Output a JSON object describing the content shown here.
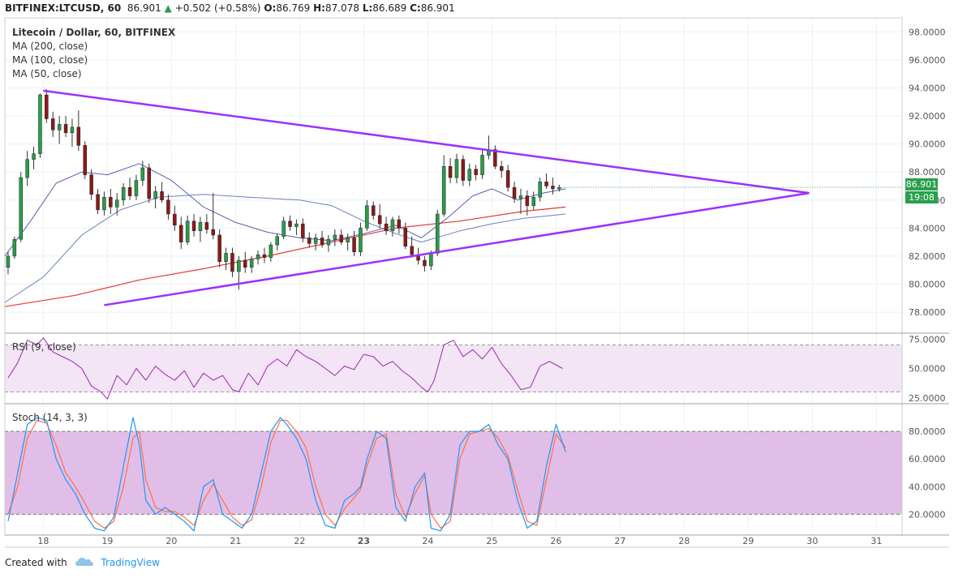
{
  "header": {
    "symbol": "BITFINEX:LTCUSD, 60",
    "last": "86.901",
    "change": "+0.502 (+0.58%)",
    "o_label": "O:",
    "o": "86.769",
    "h_label": "H:",
    "h": "87.078",
    "l_label": "L:",
    "l": "86.689",
    "c_label": "C:",
    "c": "86.901"
  },
  "legend": {
    "title": "Litecoin / Dollar, 60, BITFINEX",
    "ma200": "MA (200, close)",
    "ma100": "MA (100, close)",
    "ma50": "MA (50, close)"
  },
  "badges": {
    "price": "86.901",
    "time": "19:08"
  },
  "rsi_label": "RSI (9, close)",
  "stoch_label": "Stoch (14, 3, 3)",
  "footer": {
    "created_with": "Created with",
    "brand": "TradingView"
  },
  "colors": {
    "up": "#2a9d4a",
    "down": "#8b1a1a",
    "triangle": "#9b30ff",
    "ma200": "#e53935",
    "ma100": "#6b7fc6",
    "ma50": "#5560b0",
    "rsi_line": "#9c27b0",
    "stoch_k": "#2196f3",
    "stoch_d": "#ff7043",
    "band": "#e1bee7"
  },
  "chart_data": [
    {
      "type": "candlestick",
      "title": "Litecoin / Dollar, 60, BITFINEX",
      "x_ticks": [
        "18",
        "19",
        "20",
        "21",
        "22",
        "23",
        "24",
        "25",
        "26",
        "27",
        "28",
        "29",
        "30",
        "31"
      ],
      "y_ticks": [
        "98.0000",
        "96.0000",
        "94.0000",
        "92.0000",
        "90.0000",
        "88.0000",
        "86.0000",
        "84.0000",
        "82.0000",
        "80.0000",
        "78.0000"
      ],
      "ylim": [
        76.5,
        99
      ],
      "xlim": [
        17.4,
        31.4
      ],
      "candles": [
        {
          "t": 17.45,
          "o": 81.2,
          "h": 82.3,
          "l": 80.7,
          "c": 82.0
        },
        {
          "t": 17.55,
          "o": 82.0,
          "h": 83.4,
          "l": 81.8,
          "c": 83.2
        },
        {
          "t": 17.65,
          "o": 83.2,
          "h": 88.0,
          "l": 83.0,
          "c": 87.6
        },
        {
          "t": 17.75,
          "o": 87.6,
          "h": 89.5,
          "l": 87.0,
          "c": 88.9
        },
        {
          "t": 17.85,
          "o": 88.9,
          "h": 89.8,
          "l": 88.2,
          "c": 89.3
        },
        {
          "t": 17.95,
          "o": 89.3,
          "h": 93.6,
          "l": 89.0,
          "c": 93.5
        },
        {
          "t": 18.05,
          "o": 93.5,
          "h": 93.9,
          "l": 91.5,
          "c": 91.8
        },
        {
          "t": 18.15,
          "o": 91.8,
          "h": 92.3,
          "l": 90.5,
          "c": 91.0
        },
        {
          "t": 18.25,
          "o": 91.0,
          "h": 92.0,
          "l": 90.0,
          "c": 91.4
        },
        {
          "t": 18.35,
          "o": 91.4,
          "h": 92.0,
          "l": 90.5,
          "c": 90.8
        },
        {
          "t": 18.45,
          "o": 90.8,
          "h": 91.8,
          "l": 89.8,
          "c": 91.2
        },
        {
          "t": 18.55,
          "o": 91.2,
          "h": 92.4,
          "l": 89.5,
          "c": 89.9
        },
        {
          "t": 18.65,
          "o": 89.9,
          "h": 90.2,
          "l": 87.5,
          "c": 87.8
        },
        {
          "t": 18.75,
          "o": 87.8,
          "h": 88.2,
          "l": 86.0,
          "c": 86.4
        },
        {
          "t": 18.85,
          "o": 86.4,
          "h": 86.8,
          "l": 85.0,
          "c": 85.3
        },
        {
          "t": 18.95,
          "o": 85.3,
          "h": 86.6,
          "l": 84.9,
          "c": 86.2
        },
        {
          "t": 19.05,
          "o": 86.2,
          "h": 86.8,
          "l": 85.0,
          "c": 85.5
        },
        {
          "t": 19.15,
          "o": 85.5,
          "h": 86.5,
          "l": 84.9,
          "c": 86.0
        },
        {
          "t": 19.25,
          "o": 86.0,
          "h": 87.2,
          "l": 85.6,
          "c": 86.9
        },
        {
          "t": 19.35,
          "o": 86.9,
          "h": 87.6,
          "l": 86.0,
          "c": 86.3
        },
        {
          "t": 19.45,
          "o": 86.3,
          "h": 87.8,
          "l": 86.0,
          "c": 87.4
        },
        {
          "t": 19.55,
          "o": 87.4,
          "h": 88.8,
          "l": 87.0,
          "c": 88.3
        },
        {
          "t": 19.65,
          "o": 88.3,
          "h": 88.6,
          "l": 85.8,
          "c": 86.1
        },
        {
          "t": 19.75,
          "o": 86.1,
          "h": 87.0,
          "l": 85.4,
          "c": 86.6
        },
        {
          "t": 19.85,
          "o": 86.6,
          "h": 87.3,
          "l": 85.8,
          "c": 86.0
        },
        {
          "t": 19.95,
          "o": 86.0,
          "h": 86.4,
          "l": 84.6,
          "c": 85.0
        },
        {
          "t": 20.05,
          "o": 85.0,
          "h": 85.6,
          "l": 83.8,
          "c": 84.2
        },
        {
          "t": 20.15,
          "o": 84.2,
          "h": 84.8,
          "l": 82.5,
          "c": 83.0
        },
        {
          "t": 20.25,
          "o": 83.0,
          "h": 84.9,
          "l": 82.8,
          "c": 84.5
        },
        {
          "t": 20.35,
          "o": 84.5,
          "h": 85.0,
          "l": 83.4,
          "c": 83.8
        },
        {
          "t": 20.45,
          "o": 83.8,
          "h": 84.8,
          "l": 83.0,
          "c": 84.4
        },
        {
          "t": 20.55,
          "o": 84.4,
          "h": 85.0,
          "l": 83.6,
          "c": 83.9
        },
        {
          "t": 20.65,
          "o": 83.9,
          "h": 86.5,
          "l": 83.2,
          "c": 83.5
        },
        {
          "t": 20.75,
          "o": 83.5,
          "h": 83.9,
          "l": 81.2,
          "c": 81.6
        },
        {
          "t": 20.85,
          "o": 81.6,
          "h": 82.6,
          "l": 81.0,
          "c": 82.2
        },
        {
          "t": 20.95,
          "o": 82.2,
          "h": 82.6,
          "l": 80.5,
          "c": 80.9
        },
        {
          "t": 21.05,
          "o": 80.9,
          "h": 82.0,
          "l": 79.6,
          "c": 81.7
        },
        {
          "t": 21.15,
          "o": 81.7,
          "h": 82.3,
          "l": 80.8,
          "c": 81.2
        },
        {
          "t": 21.25,
          "o": 81.2,
          "h": 82.0,
          "l": 80.8,
          "c": 81.8
        },
        {
          "t": 21.35,
          "o": 81.8,
          "h": 82.4,
          "l": 81.4,
          "c": 82.1
        },
        {
          "t": 21.45,
          "o": 82.1,
          "h": 82.6,
          "l": 81.5,
          "c": 81.9
        },
        {
          "t": 21.55,
          "o": 81.9,
          "h": 83.0,
          "l": 81.6,
          "c": 82.8
        },
        {
          "t": 21.65,
          "o": 82.8,
          "h": 83.6,
          "l": 82.4,
          "c": 83.4
        },
        {
          "t": 21.75,
          "o": 83.4,
          "h": 84.8,
          "l": 83.2,
          "c": 84.5
        },
        {
          "t": 21.85,
          "o": 84.5,
          "h": 84.9,
          "l": 83.8,
          "c": 84.1
        },
        {
          "t": 21.95,
          "o": 84.1,
          "h": 84.6,
          "l": 83.5,
          "c": 84.3
        },
        {
          "t": 22.05,
          "o": 84.3,
          "h": 84.7,
          "l": 83.0,
          "c": 83.3
        },
        {
          "t": 22.15,
          "o": 83.3,
          "h": 83.7,
          "l": 82.6,
          "c": 82.9
        },
        {
          "t": 22.25,
          "o": 82.9,
          "h": 83.6,
          "l": 82.4,
          "c": 83.3
        },
        {
          "t": 22.35,
          "o": 83.3,
          "h": 83.8,
          "l": 82.6,
          "c": 82.8
        },
        {
          "t": 22.45,
          "o": 82.8,
          "h": 83.5,
          "l": 82.3,
          "c": 83.2
        },
        {
          "t": 22.55,
          "o": 83.2,
          "h": 83.9,
          "l": 82.7,
          "c": 83.5
        },
        {
          "t": 22.65,
          "o": 83.5,
          "h": 83.9,
          "l": 82.8,
          "c": 83.0
        },
        {
          "t": 22.75,
          "o": 83.0,
          "h": 83.6,
          "l": 82.4,
          "c": 83.3
        },
        {
          "t": 22.85,
          "o": 83.3,
          "h": 83.8,
          "l": 82.0,
          "c": 82.3
        },
        {
          "t": 22.95,
          "o": 82.3,
          "h": 84.4,
          "l": 82.0,
          "c": 84.0
        },
        {
          "t": 23.05,
          "o": 84.0,
          "h": 86.0,
          "l": 83.8,
          "c": 85.6
        },
        {
          "t": 23.15,
          "o": 85.6,
          "h": 85.9,
          "l": 84.6,
          "c": 84.9
        },
        {
          "t": 23.25,
          "o": 84.9,
          "h": 85.7,
          "l": 84.0,
          "c": 84.3
        },
        {
          "t": 23.35,
          "o": 84.3,
          "h": 84.8,
          "l": 83.5,
          "c": 83.8
        },
        {
          "t": 23.45,
          "o": 83.8,
          "h": 84.8,
          "l": 83.4,
          "c": 84.6
        },
        {
          "t": 23.55,
          "o": 84.6,
          "h": 84.9,
          "l": 83.6,
          "c": 84.0
        },
        {
          "t": 23.65,
          "o": 84.0,
          "h": 84.4,
          "l": 82.5,
          "c": 82.7
        },
        {
          "t": 23.75,
          "o": 82.7,
          "h": 83.4,
          "l": 81.9,
          "c": 82.1
        },
        {
          "t": 23.85,
          "o": 82.1,
          "h": 82.6,
          "l": 81.4,
          "c": 81.7
        },
        {
          "t": 23.95,
          "o": 81.7,
          "h": 82.0,
          "l": 80.9,
          "c": 81.3
        },
        {
          "t": 24.05,
          "o": 81.3,
          "h": 82.4,
          "l": 81.0,
          "c": 82.2
        },
        {
          "t": 24.15,
          "o": 82.2,
          "h": 85.3,
          "l": 82.0,
          "c": 85.0
        },
        {
          "t": 24.25,
          "o": 85.0,
          "h": 89.2,
          "l": 84.8,
          "c": 88.4
        },
        {
          "t": 24.35,
          "o": 88.4,
          "h": 89.0,
          "l": 87.2,
          "c": 87.6
        },
        {
          "t": 24.45,
          "o": 87.6,
          "h": 89.3,
          "l": 87.2,
          "c": 88.9
        },
        {
          "t": 24.55,
          "o": 88.9,
          "h": 89.2,
          "l": 87.0,
          "c": 87.4
        },
        {
          "t": 24.65,
          "o": 87.4,
          "h": 88.6,
          "l": 87.0,
          "c": 88.2
        },
        {
          "t": 24.75,
          "o": 88.2,
          "h": 88.5,
          "l": 87.4,
          "c": 87.8
        },
        {
          "t": 24.85,
          "o": 87.8,
          "h": 89.6,
          "l": 87.5,
          "c": 89.2
        },
        {
          "t": 24.95,
          "o": 89.2,
          "h": 90.6,
          "l": 88.9,
          "c": 89.6
        },
        {
          "t": 25.05,
          "o": 89.6,
          "h": 89.9,
          "l": 88.2,
          "c": 88.4
        },
        {
          "t": 25.15,
          "o": 88.4,
          "h": 88.8,
          "l": 87.6,
          "c": 88.1
        },
        {
          "t": 25.25,
          "o": 88.1,
          "h": 88.5,
          "l": 86.6,
          "c": 86.9
        },
        {
          "t": 25.35,
          "o": 86.9,
          "h": 87.3,
          "l": 85.8,
          "c": 86.1
        },
        {
          "t": 25.45,
          "o": 86.1,
          "h": 86.8,
          "l": 85.0,
          "c": 86.3
        },
        {
          "t": 25.55,
          "o": 86.3,
          "h": 86.7,
          "l": 84.9,
          "c": 85.6
        },
        {
          "t": 25.65,
          "o": 85.6,
          "h": 86.6,
          "l": 85.3,
          "c": 86.2
        },
        {
          "t": 25.75,
          "o": 86.2,
          "h": 87.6,
          "l": 85.9,
          "c": 87.3
        },
        {
          "t": 25.85,
          "o": 87.3,
          "h": 87.9,
          "l": 86.8,
          "c": 87.0
        },
        {
          "t": 25.95,
          "o": 87.0,
          "h": 87.6,
          "l": 86.4,
          "c": 86.8
        },
        {
          "t": 26.05,
          "o": 86.8,
          "h": 87.1,
          "l": 86.6,
          "c": 86.9
        }
      ],
      "ma200": [
        [
          17.4,
          78.4
        ],
        [
          18.5,
          79.2
        ],
        [
          19.5,
          80.3
        ],
        [
          20.5,
          81.1
        ],
        [
          21.5,
          82.0
        ],
        [
          22.5,
          83.0
        ],
        [
          23.5,
          84.0
        ],
        [
          24.5,
          84.5
        ],
        [
          25.5,
          85.2
        ],
        [
          26.15,
          85.5
        ]
      ],
      "ma100": [
        [
          17.4,
          78.7
        ],
        [
          18.0,
          80.5
        ],
        [
          18.6,
          83.5
        ],
        [
          19.2,
          85.3
        ],
        [
          19.8,
          86.2
        ],
        [
          20.5,
          86.4
        ],
        [
          21.2,
          86.2
        ],
        [
          22.0,
          86.0
        ],
        [
          22.5,
          85.6
        ],
        [
          23.0,
          84.5
        ],
        [
          23.5,
          83.6
        ],
        [
          23.9,
          83.0
        ],
        [
          24.5,
          83.8
        ],
        [
          25.0,
          84.3
        ],
        [
          25.5,
          84.7
        ],
        [
          26.15,
          85.0
        ]
      ],
      "ma50": [
        [
          17.4,
          82.0
        ],
        [
          17.8,
          84.5
        ],
        [
          18.2,
          87.2
        ],
        [
          18.6,
          88.0
        ],
        [
          19.0,
          87.8
        ],
        [
          19.5,
          88.6
        ],
        [
          20.0,
          87.4
        ],
        [
          20.5,
          85.5
        ],
        [
          21.0,
          84.4
        ],
        [
          21.5,
          83.7
        ],
        [
          22.0,
          83.3
        ],
        [
          22.5,
          83.1
        ],
        [
          23.0,
          83.6
        ],
        [
          23.5,
          84.2
        ],
        [
          23.9,
          83.3
        ],
        [
          24.3,
          84.7
        ],
        [
          24.7,
          86.3
        ],
        [
          25.0,
          86.8
        ],
        [
          25.4,
          86.0
        ],
        [
          25.8,
          86.5
        ],
        [
          26.15,
          86.8
        ]
      ],
      "trendlines": [
        {
          "from": [
            18.0,
            93.8
          ],
          "to": [
            29.95,
            86.5
          ]
        },
        {
          "from": [
            18.95,
            78.5
          ],
          "to": [
            29.95,
            86.5
          ]
        }
      ]
    },
    {
      "type": "line",
      "title": "RSI (9, close)",
      "y_ticks": [
        "75.0000",
        "50.0000",
        "25.0000"
      ],
      "ylim": [
        20,
        80
      ],
      "band": [
        30,
        70
      ],
      "x": [
        17.45,
        17.6,
        17.75,
        17.9,
        18.0,
        18.15,
        18.3,
        18.45,
        18.6,
        18.75,
        18.9,
        19.0,
        19.15,
        19.3,
        19.45,
        19.6,
        19.75,
        19.9,
        20.05,
        20.2,
        20.35,
        20.5,
        20.65,
        20.8,
        20.95,
        21.05,
        21.2,
        21.35,
        21.5,
        21.65,
        21.8,
        21.95,
        22.1,
        22.25,
        22.4,
        22.55,
        22.7,
        22.85,
        23.0,
        23.15,
        23.3,
        23.45,
        23.6,
        23.75,
        23.9,
        24.0,
        24.1,
        24.25,
        24.4,
        24.55,
        24.7,
        24.85,
        25.0,
        25.15,
        25.3,
        25.45,
        25.6,
        25.75,
        25.9,
        26.1
      ],
      "values": [
        42,
        55,
        74,
        70,
        76,
        64,
        60,
        56,
        50,
        35,
        30,
        24,
        44,
        36,
        50,
        40,
        52,
        45,
        40,
        48,
        34,
        46,
        40,
        44,
        32,
        30,
        46,
        36,
        52,
        58,
        52,
        66,
        60,
        56,
        50,
        44,
        52,
        49,
        62,
        60,
        52,
        56,
        48,
        42,
        34,
        30,
        40,
        70,
        74,
        60,
        66,
        58,
        68,
        54,
        44,
        32,
        34,
        52,
        56,
        50
      ]
    },
    {
      "type": "line",
      "title": "Stoch (14, 3, 3)",
      "y_ticks": [
        "80.0000",
        "60.0000",
        "40.0000",
        "20.0000"
      ],
      "ylim": [
        5,
        100
      ],
      "band": [
        20,
        80
      ],
      "x": [
        17.45,
        17.6,
        17.75,
        17.9,
        18.05,
        18.2,
        18.35,
        18.5,
        18.65,
        18.8,
        18.95,
        19.1,
        19.25,
        19.4,
        19.5,
        19.6,
        19.75,
        19.9,
        20.05,
        20.2,
        20.35,
        20.5,
        20.65,
        20.8,
        20.95,
        21.1,
        21.25,
        21.4,
        21.55,
        21.7,
        21.8,
        21.95,
        22.1,
        22.25,
        22.4,
        22.55,
        22.7,
        22.85,
        22.95,
        23.05,
        23.2,
        23.35,
        23.5,
        23.65,
        23.8,
        23.95,
        24.05,
        24.2,
        24.35,
        24.5,
        24.65,
        24.8,
        24.95,
        25.1,
        25.25,
        25.4,
        25.55,
        25.7,
        25.85,
        26.0,
        26.15
      ],
      "k": [
        15,
        50,
        85,
        90,
        88,
        60,
        45,
        35,
        20,
        10,
        8,
        18,
        55,
        90,
        70,
        30,
        20,
        25,
        20,
        15,
        8,
        40,
        45,
        20,
        15,
        10,
        20,
        50,
        80,
        90,
        85,
        75,
        60,
        30,
        12,
        10,
        30,
        35,
        40,
        60,
        80,
        75,
        25,
        15,
        40,
        50,
        10,
        8,
        20,
        70,
        80,
        80,
        85,
        70,
        60,
        30,
        10,
        15,
        55,
        85,
        65
      ],
      "d": [
        20,
        40,
        75,
        88,
        86,
        70,
        50,
        40,
        28,
        15,
        10,
        15,
        40,
        75,
        80,
        45,
        25,
        22,
        22,
        18,
        12,
        30,
        42,
        30,
        18,
        12,
        16,
        40,
        72,
        88,
        88,
        80,
        68,
        40,
        20,
        12,
        24,
        32,
        38,
        55,
        75,
        78,
        35,
        18,
        35,
        48,
        20,
        10,
        15,
        60,
        78,
        80,
        82,
        75,
        62,
        38,
        15,
        12,
        45,
        78,
        68
      ]
    }
  ]
}
